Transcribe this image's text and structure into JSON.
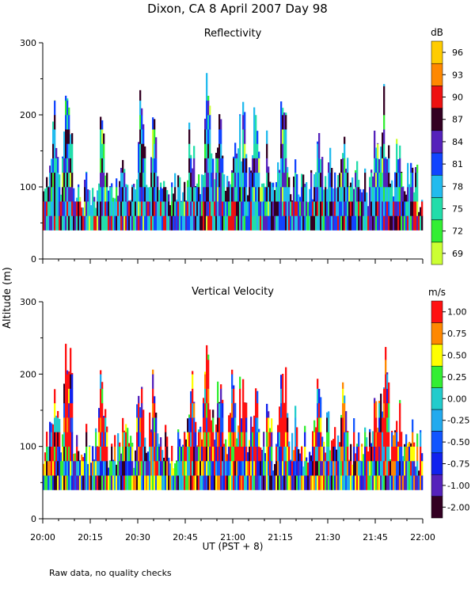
{
  "header": {
    "title": "Dixon, CA   8 April 2007   Day   98",
    "footnote": "Raw data, no quality checks"
  },
  "shared_axes": {
    "ylabel": "Altitude  (m)",
    "xlabel": "UT   (PST + 8)",
    "x_range_minutes": [
      0,
      120
    ],
    "x_ticks": [
      {
        "minutes": 0,
        "label": "20:00"
      },
      {
        "minutes": 15,
        "label": "20:15"
      },
      {
        "minutes": 30,
        "label": "20:30"
      },
      {
        "minutes": 45,
        "label": "20:45"
      },
      {
        "minutes": 60,
        "label": "21:00"
      },
      {
        "minutes": 75,
        "label": "21:15"
      },
      {
        "minutes": 90,
        "label": "21:30"
      },
      {
        "minutes": 105,
        "label": "21:45"
      },
      {
        "minutes": 120,
        "label": "22:00"
      }
    ],
    "x_minor_tick_step_minutes": 5,
    "y_range": [
      0,
      300
    ],
    "y_ticks": [
      0,
      100,
      200,
      300
    ]
  },
  "chart_data": [
    {
      "type": "heatmap",
      "title": "Reflectivity",
      "ylabel": "Altitude  (m)",
      "ylim": [
        0,
        300
      ],
      "y_ticks": [
        0,
        100,
        200,
        300
      ],
      "min_altitude": 40,
      "colorbar": {
        "unit": "dB",
        "tick_labels": [
          "69",
          "72",
          "75",
          "78",
          "81",
          "84",
          "87",
          "90",
          "93",
          "96"
        ],
        "colors": [
          "#ccff33",
          "#33ee33",
          "#22ddaa",
          "#22bbee",
          "#1144ff",
          "#5522bb",
          "#330022",
          "#ee1111",
          "#ff8800",
          "#ffcc00"
        ]
      },
      "field": "reflectivity",
      "data_note": "Synthetic reproduction: bursts of echoes from 40 m up to ~260 m; values mostly 72-87 dB"
    },
    {
      "type": "heatmap",
      "title": "Vertical Velocity",
      "ylabel": "Altitude  (m)",
      "ylim": [
        0,
        300
      ],
      "y_ticks": [
        0,
        100,
        200,
        300
      ],
      "min_altitude": 40,
      "colorbar": {
        "unit": "m/s",
        "tick_labels": [
          "-2.00",
          "-1.00",
          "-0.75",
          "-0.50",
          "-0.25",
          "0.00",
          "0.25",
          "0.50",
          "0.75",
          "1.00"
        ],
        "colors": [
          "#330022",
          "#5522bb",
          "#1122ee",
          "#1155ff",
          "#22aaee",
          "#22cccc",
          "#33ee33",
          "#ffff00",
          "#ff8800",
          "#ff1111"
        ]
      },
      "field": "velocity",
      "data_note": "Synthetic reproduction: mixed updraft/downdraft columns; strong positive (red) near 20:08, 20:30, 20:50-21:10, 21:17, 21:47"
    }
  ]
}
